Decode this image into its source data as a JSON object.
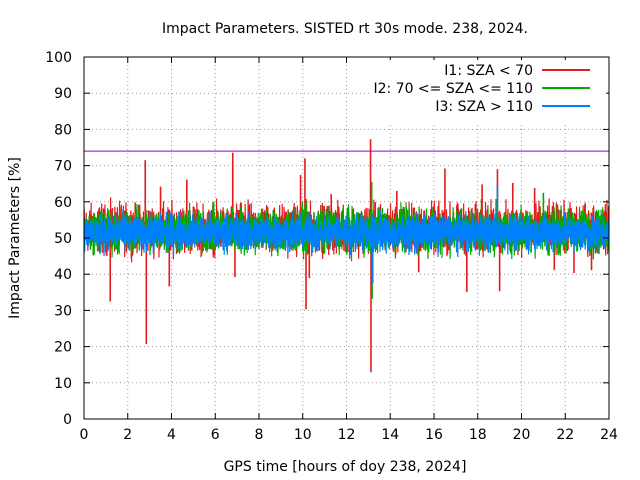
{
  "chart_data": {
    "type": "line",
    "title": "Impact Parameters. SISTED rt 30s mode. 238, 2024.",
    "xlabel": "GPS time [hours of doy 238, 2024]",
    "ylabel": "Impact Parameters [%]",
    "xlim": [
      0,
      24
    ],
    "ylim": [
      0,
      100
    ],
    "x_ticks": [
      0,
      2,
      4,
      6,
      8,
      10,
      12,
      14,
      16,
      18,
      20,
      22,
      24
    ],
    "y_ticks": [
      0,
      10,
      20,
      30,
      40,
      50,
      60,
      70,
      80,
      90,
      100
    ],
    "grid": true,
    "legend_position": "top-right",
    "reference_line": {
      "y": 74,
      "color": "#9400d3"
    },
    "series": [
      {
        "name": "I1: SZA < 70",
        "color": "#e41a1c",
        "typical_range": [
          45,
          60
        ],
        "spikes": [
          {
            "x": 1.2,
            "y": 32.5
          },
          {
            "x": 2.8,
            "y": 71.5
          },
          {
            "x": 2.85,
            "y": 20.7
          },
          {
            "x": 3.5,
            "y": 64.2
          },
          {
            "x": 3.9,
            "y": 36.6
          },
          {
            "x": 4.7,
            "y": 66.1
          },
          {
            "x": 6.8,
            "y": 73.6
          },
          {
            "x": 6.9,
            "y": 39.2
          },
          {
            "x": 9.9,
            "y": 67.4
          },
          {
            "x": 10.1,
            "y": 72.0
          },
          {
            "x": 10.15,
            "y": 30.3
          },
          {
            "x": 10.3,
            "y": 38.9
          },
          {
            "x": 11.3,
            "y": 62.1
          },
          {
            "x": 13.1,
            "y": 77.3
          },
          {
            "x": 13.12,
            "y": 12.9
          },
          {
            "x": 14.3,
            "y": 63.0
          },
          {
            "x": 15.3,
            "y": 40.5
          },
          {
            "x": 16.5,
            "y": 69.2
          },
          {
            "x": 17.5,
            "y": 35.1
          },
          {
            "x": 18.2,
            "y": 64.8
          },
          {
            "x": 18.9,
            "y": 69.0
          },
          {
            "x": 19.0,
            "y": 35.3
          },
          {
            "x": 19.6,
            "y": 65.2
          },
          {
            "x": 20.6,
            "y": 63.8
          },
          {
            "x": 21.5,
            "y": 41.2
          },
          {
            "x": 22.4,
            "y": 40.3
          },
          {
            "x": 23.2,
            "y": 41.1
          }
        ]
      },
      {
        "name": "I2: 70 <= SZA <= 110",
        "color": "#00aa00",
        "typical_range": [
          45,
          59
        ],
        "spikes": [
          {
            "x": 13.15,
            "y": 65.5
          },
          {
            "x": 13.17,
            "y": 33.2
          },
          {
            "x": 21.0,
            "y": 62.5
          }
        ]
      },
      {
        "name": "I3: SZA > 110",
        "color": "#0080ff",
        "typical_range": [
          46,
          57
        ],
        "spikes": [
          {
            "x": 18.9,
            "y": 64.5
          },
          {
            "x": 13.2,
            "y": 37.5
          }
        ]
      }
    ]
  }
}
